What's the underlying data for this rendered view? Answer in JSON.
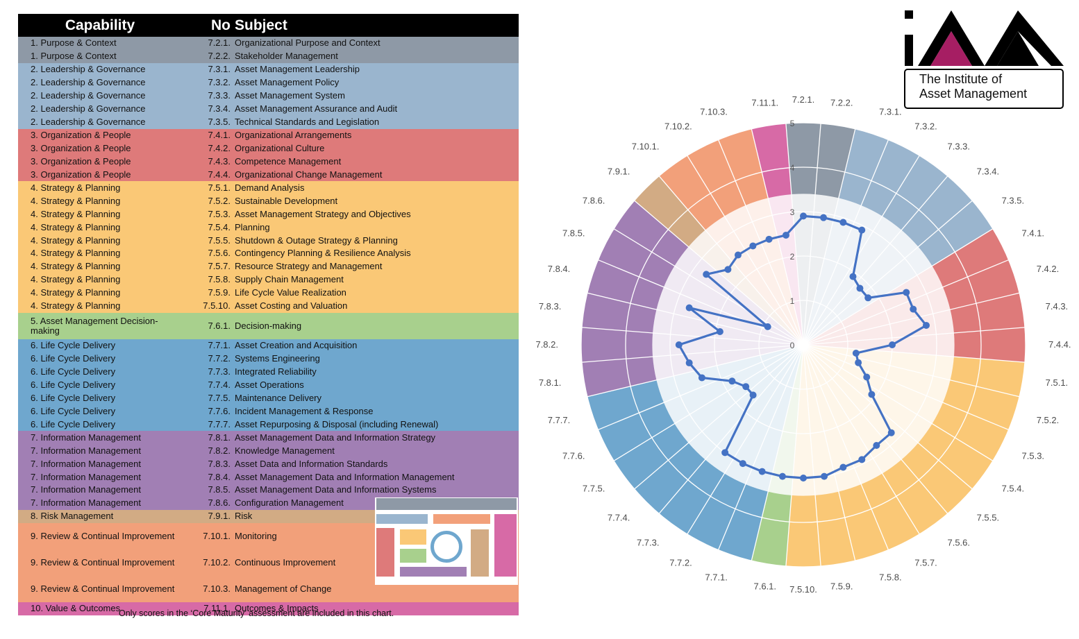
{
  "table": {
    "headers": [
      "Capability",
      "No",
      "Subject"
    ],
    "rows": [
      {
        "capability": "1. Purpose & Context",
        "no": "7.2.1.",
        "subject": "Organizational Purpose and Context",
        "color": "#8E99A6"
      },
      {
        "capability": "1. Purpose & Context",
        "no": "7.2.2.",
        "subject": "Stakeholder Management",
        "color": "#8E99A6"
      },
      {
        "capability": "2. Leadership & Governance",
        "no": "7.3.1.",
        "subject": "Asset Management Leadership",
        "color": "#9AB5CE"
      },
      {
        "capability": "2. Leadership & Governance",
        "no": "7.3.2.",
        "subject": "Asset Management Policy",
        "color": "#9AB5CE"
      },
      {
        "capability": "2. Leadership & Governance",
        "no": "7.3.3.",
        "subject": "Asset Management System",
        "color": "#9AB5CE"
      },
      {
        "capability": "2. Leadership & Governance",
        "no": "7.3.4.",
        "subject": "Asset Management Assurance and Audit",
        "color": "#9AB5CE"
      },
      {
        "capability": "2. Leadership & Governance",
        "no": "7.3.5.",
        "subject": "Technical Standards and Legislation",
        "color": "#9AB5CE"
      },
      {
        "capability": "3. Organization & People",
        "no": "7.4.1.",
        "subject": "Organizational Arrangements",
        "color": "#DE7A7A"
      },
      {
        "capability": "3. Organization & People",
        "no": "7.4.2.",
        "subject": "Organizational Culture",
        "color": "#DE7A7A"
      },
      {
        "capability": "3. Organization & People",
        "no": "7.4.3.",
        "subject": "Competence Management",
        "color": "#DE7A7A"
      },
      {
        "capability": "3. Organization & People",
        "no": "7.4.4.",
        "subject": "Organizational Change Management",
        "color": "#DE7A7A"
      },
      {
        "capability": "4. Strategy & Planning",
        "no": "7.5.1.",
        "subject": "Demand Analysis",
        "color": "#FAC876"
      },
      {
        "capability": "4. Strategy & Planning",
        "no": "7.5.2.",
        "subject": "Sustainable Development",
        "color": "#FAC876"
      },
      {
        "capability": "4. Strategy & Planning",
        "no": "7.5.3.",
        "subject": "Asset Management Strategy and Objectives",
        "color": "#FAC876"
      },
      {
        "capability": "4. Strategy & Planning",
        "no": "7.5.4.",
        "subject": "Planning",
        "color": "#FAC876"
      },
      {
        "capability": "4. Strategy & Planning",
        "no": "7.5.5.",
        "subject": "Shutdown & Outage Strategy & Planning",
        "color": "#FAC876"
      },
      {
        "capability": "4. Strategy & Planning",
        "no": "7.5.6.",
        "subject": "Contingency Planning & Resilience Analysis",
        "color": "#FAC876"
      },
      {
        "capability": "4. Strategy & Planning",
        "no": "7.5.7.",
        "subject": "Resource Strategy and Management",
        "color": "#FAC876"
      },
      {
        "capability": "4. Strategy & Planning",
        "no": "7.5.8.",
        "subject": "Supply Chain Management",
        "color": "#FAC876"
      },
      {
        "capability": "4. Strategy & Planning",
        "no": "7.5.9.",
        "subject": "Life Cycle Value Realization",
        "color": "#FAC876"
      },
      {
        "capability": "4. Strategy & Planning",
        "no": "7.5.10.",
        "subject": "Asset Costing and Valuation",
        "color": "#FAC876"
      },
      {
        "capability": "5. Asset Management Decision-making",
        "no": "7.6.1.",
        "subject": "Decision-making",
        "color": "#A8D08D"
      },
      {
        "capability": "6. Life Cycle Delivery",
        "no": "7.7.1.",
        "subject": "Asset Creation and Acquisition",
        "color": "#6FA7CE"
      },
      {
        "capability": "6. Life Cycle Delivery",
        "no": "7.7.2.",
        "subject": "Systems Engineering",
        "color": "#6FA7CE"
      },
      {
        "capability": "6. Life Cycle Delivery",
        "no": "7.7.3.",
        "subject": "Integrated Reliability",
        "color": "#6FA7CE"
      },
      {
        "capability": "6. Life Cycle Delivery",
        "no": "7.7.4.",
        "subject": "Asset Operations",
        "color": "#6FA7CE"
      },
      {
        "capability": "6. Life Cycle Delivery",
        "no": "7.7.5.",
        "subject": "Maintenance Delivery",
        "color": "#6FA7CE"
      },
      {
        "capability": "6. Life Cycle Delivery",
        "no": "7.7.6.",
        "subject": "Incident Management & Response",
        "color": "#6FA7CE"
      },
      {
        "capability": "6. Life Cycle Delivery",
        "no": "7.7.7.",
        "subject": "Asset Repurposing & Disposal (including Renewal)",
        "color": "#6FA7CE"
      },
      {
        "capability": "7. Information Management",
        "no": "7.8.1.",
        "subject": "Asset Management Data and Information Strategy",
        "color": "#A17FB4"
      },
      {
        "capability": "7. Information Management",
        "no": "7.8.2.",
        "subject": "Knowledge Management",
        "color": "#A17FB4"
      },
      {
        "capability": "7. Information Management",
        "no": "7.8.3.",
        "subject": "Asset Data and Information Standards",
        "color": "#A17FB4"
      },
      {
        "capability": "7. Information Management",
        "no": "7.8.4.",
        "subject": "Asset Management Data and Information Management",
        "color": "#A17FB4"
      },
      {
        "capability": "7. Information Management",
        "no": "7.8.5.",
        "subject": "Asset Management Data and Information Systems",
        "color": "#A17FB4"
      },
      {
        "capability": "7. Information Management",
        "no": "7.8.6.",
        "subject": "Configuration Management",
        "color": "#A17FB4"
      },
      {
        "capability": "8. Risk Management",
        "no": "7.9.1.",
        "subject": "Risk",
        "color": "#D2AB84"
      },
      {
        "capability": "9. Review & Continual Improvement",
        "no": "7.10.1.",
        "subject": "Monitoring",
        "color": "#F2A07A"
      },
      {
        "capability": "9. Review & Continual Improvement",
        "no": "7.10.2.",
        "subject": "Continuous Improvement",
        "color": "#F2A07A"
      },
      {
        "capability": "9. Review & Continual Improvement",
        "no": "7.10.3.",
        "subject": "Management of Change",
        "color": "#F2A07A"
      },
      {
        "capability": "10. Value & Outcomes",
        "no": "7.11.1.",
        "subject": "Outcomes & Impacts",
        "color": "#D76AA6"
      }
    ]
  },
  "footnote": "Only scores in the ‘Core Maturity’ assessment are included in this chart.",
  "logo": {
    "line1": "The Institute of",
    "line2": "Asset Management",
    "mark": "iAM"
  },
  "chart_data": {
    "type": "radar",
    "title": "",
    "rmax": 5,
    "ticks": [
      0,
      1,
      2,
      3,
      4,
      5
    ],
    "axes": [
      "7.2.1.",
      "7.2.2.",
      "7.3.1.",
      "7.3.2.",
      "7.3.3.",
      "7.3.4.",
      "7.3.5.",
      "7.4.1.",
      "7.4.2.",
      "7.4.3.",
      "7.4.4.",
      "7.5.1.",
      "7.5.2.",
      "7.5.3.",
      "7.5.4.",
      "7.5.5.",
      "7.5.6.",
      "7.5.7.",
      "7.5.8.",
      "7.5.9.",
      "7.5.10.",
      "7.6.1.",
      "7.7.1.",
      "7.7.2.",
      "7.7.3.",
      "7.7.4.",
      "7.7.5.",
      "7.7.6.",
      "7.7.7.",
      "7.8.1.",
      "7.8.2.",
      "7.8.3.",
      "7.8.4.",
      "7.8.5.",
      "7.8.6.",
      "7.9.1.",
      "7.10.1.",
      "7.10.2.",
      "7.10.3.",
      "7.11.1."
    ],
    "axis_colors": [
      "#8E99A6",
      "#8E99A6",
      "#9AB5CE",
      "#9AB5CE",
      "#9AB5CE",
      "#9AB5CE",
      "#9AB5CE",
      "#DE7A7A",
      "#DE7A7A",
      "#DE7A7A",
      "#DE7A7A",
      "#FAC876",
      "#FAC876",
      "#FAC876",
      "#FAC876",
      "#FAC876",
      "#FAC876",
      "#FAC876",
      "#FAC876",
      "#FAC876",
      "#FAC876",
      "#A8D08D",
      "#6FA7CE",
      "#6FA7CE",
      "#6FA7CE",
      "#6FA7CE",
      "#6FA7CE",
      "#6FA7CE",
      "#6FA7CE",
      "#A17FB4",
      "#A17FB4",
      "#A17FB4",
      "#A17FB4",
      "#A17FB4",
      "#A17FB4",
      "#D2AB84",
      "#F2A07A",
      "#F2A07A",
      "#F2A07A",
      "#D76AA6"
    ],
    "series": [
      {
        "name": "Core Maturity",
        "color": "#4472C4",
        "values": [
          2.9,
          2.9,
          2.9,
          2.9,
          1.9,
          1.8,
          1.8,
          2.6,
          2.6,
          2.8,
          2.0,
          1.2,
          1.3,
          1.6,
          1.9,
          2.8,
          2.8,
          2.9,
          2.9,
          3.0,
          3.0,
          3.0,
          3.0,
          3.0,
          3.0,
          1.6,
          1.6,
          1.8,
          2.4,
          2.6,
          2.8,
          1.9,
          2.7,
          0.9,
          2.7,
          2.4,
          2.5,
          2.5,
          2.5,
          2.5
        ]
      }
    ]
  }
}
